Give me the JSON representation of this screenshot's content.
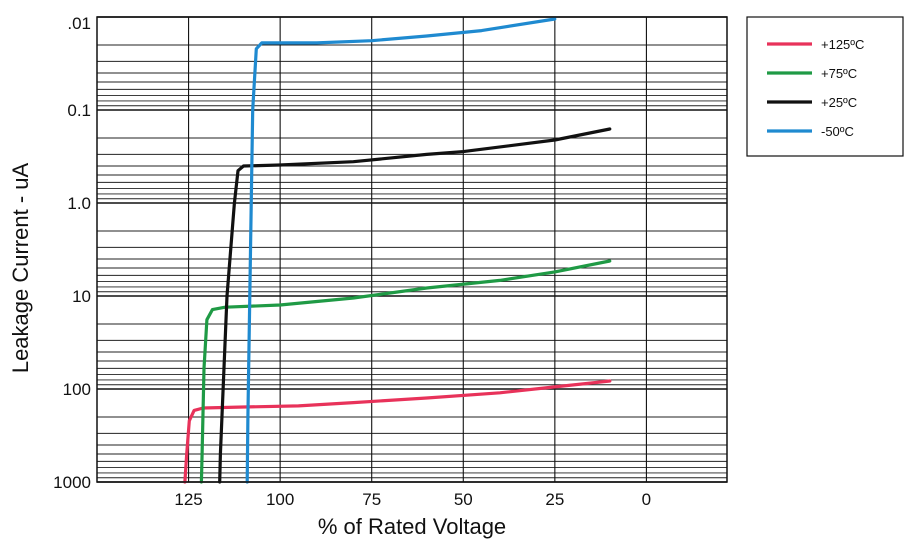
{
  "chart_data": {
    "type": "line",
    "xlabel": "% of Rated Voltage",
    "ylabel": "Leakage Current - uA",
    "x_reversed": true,
    "y_scale": "log",
    "y_reversed": true,
    "xlim": [
      150,
      -22
    ],
    "ylim": [
      0.01,
      1000
    ],
    "x_ticks": [
      125,
      100,
      75,
      50,
      25,
      0
    ],
    "x_tick_labels": [
      "125",
      "100",
      "75",
      "50",
      "25",
      "0"
    ],
    "y_ticks": [
      0.01,
      0.1,
      1,
      10,
      100,
      1000
    ],
    "y_tick_labels": [
      ".01",
      "0.1",
      "1.0",
      "10",
      "100",
      "1000"
    ],
    "grid": true,
    "legend_position": "top-right, outside plot",
    "series": [
      {
        "name": "+125ºC",
        "color": "#e8325a",
        "points": [
          [
            126,
            1000
          ],
          [
            125.5,
            500
          ],
          [
            124.8,
            220
          ],
          [
            123.5,
            170
          ],
          [
            121,
            160
          ],
          [
            110,
            156
          ],
          [
            95,
            152
          ],
          [
            80,
            140
          ],
          [
            60,
            125
          ],
          [
            40,
            110
          ],
          [
            25,
            95
          ],
          [
            10,
            82
          ]
        ]
      },
      {
        "name": "+75ºC",
        "color": "#1f9a45",
        "points": [
          [
            121.5,
            1000
          ],
          [
            121.3,
            500
          ],
          [
            120.8,
            60
          ],
          [
            120,
            18
          ],
          [
            118.5,
            14
          ],
          [
            115,
            13.2
          ],
          [
            100,
            12.5
          ],
          [
            80,
            10.5
          ],
          [
            60,
            8.2
          ],
          [
            40,
            6.8
          ],
          [
            25,
            5.5
          ],
          [
            10,
            4.2
          ]
        ]
      },
      {
        "name": "+25ºC",
        "color": "#111111",
        "points": [
          [
            116.5,
            1000
          ],
          [
            116.3,
            500
          ],
          [
            114.5,
            10
          ],
          [
            112.5,
            1
          ],
          [
            111.5,
            0.45
          ],
          [
            110,
            0.4
          ],
          [
            100,
            0.39
          ],
          [
            80,
            0.36
          ],
          [
            60,
            0.3
          ],
          [
            50,
            0.28
          ],
          [
            25,
            0.21
          ],
          [
            10,
            0.16
          ]
        ]
      },
      {
        "name": "-50ºC",
        "color": "#1f8ad0",
        "points": [
          [
            109,
            1000
          ],
          [
            108.8,
            200
          ],
          [
            107.5,
            0.1
          ],
          [
            106.5,
            0.022
          ],
          [
            105,
            0.019
          ],
          [
            90,
            0.019
          ],
          [
            75,
            0.018
          ],
          [
            60,
            0.016
          ],
          [
            45,
            0.014
          ],
          [
            25,
            0.0105
          ]
        ]
      }
    ]
  }
}
